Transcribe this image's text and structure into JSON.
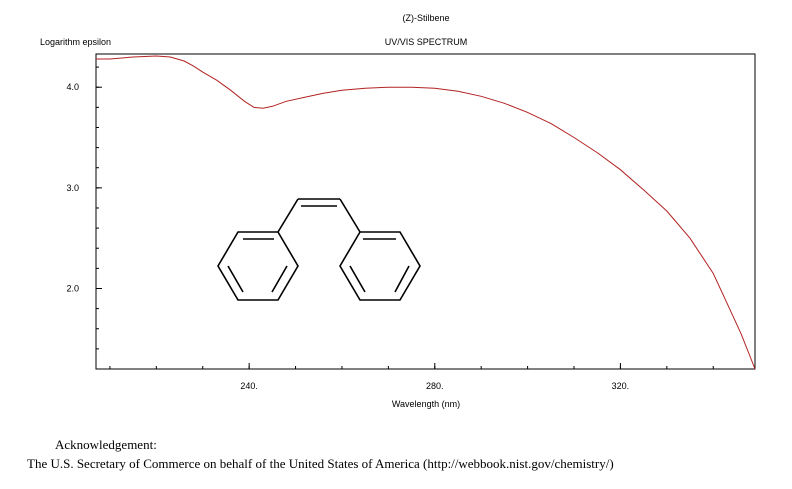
{
  "compound_name": "(Z)-Stilbene",
  "acknowledgement": {
    "heading": "Acknowledgement:",
    "text": "The U.S. Secretary of Commerce on behalf of the United States of America (http://webbook.nist.gov/chemistry/)"
  },
  "chart_data": {
    "type": "line",
    "title": "UV/VIS SPECTRUM",
    "xlabel": "Wavelength (nm)",
    "ylabel": "Logarithm epsilon",
    "xlim": [
      207,
      349
    ],
    "ylim": [
      1.2,
      4.33
    ],
    "x_ticks": [
      240,
      280,
      320
    ],
    "x_tick_labels": [
      "240.",
      "280.",
      "320."
    ],
    "y_ticks": [
      2.0,
      3.0,
      4.0
    ],
    "y_tick_labels": [
      "2.0",
      "3.0",
      "4.0"
    ],
    "line_color": "#b22222",
    "grid": false,
    "series": [
      {
        "x": [
          207,
          210,
          215,
          220,
          223,
          226,
          228,
          230,
          233,
          236,
          239,
          241,
          243,
          245,
          248,
          252,
          256,
          260,
          265,
          270,
          275,
          280,
          285,
          290,
          295,
          300,
          305,
          310,
          315,
          320,
          325,
          330,
          335,
          340,
          343,
          346,
          349
        ],
        "y": [
          4.28,
          4.28,
          4.3,
          4.31,
          4.3,
          4.26,
          4.21,
          4.15,
          4.07,
          3.97,
          3.86,
          3.8,
          3.79,
          3.81,
          3.86,
          3.9,
          3.94,
          3.97,
          3.99,
          4.0,
          4.0,
          3.99,
          3.96,
          3.91,
          3.84,
          3.75,
          3.64,
          3.5,
          3.35,
          3.18,
          2.98,
          2.77,
          2.5,
          2.15,
          1.85,
          1.55,
          1.2
        ]
      }
    ]
  }
}
